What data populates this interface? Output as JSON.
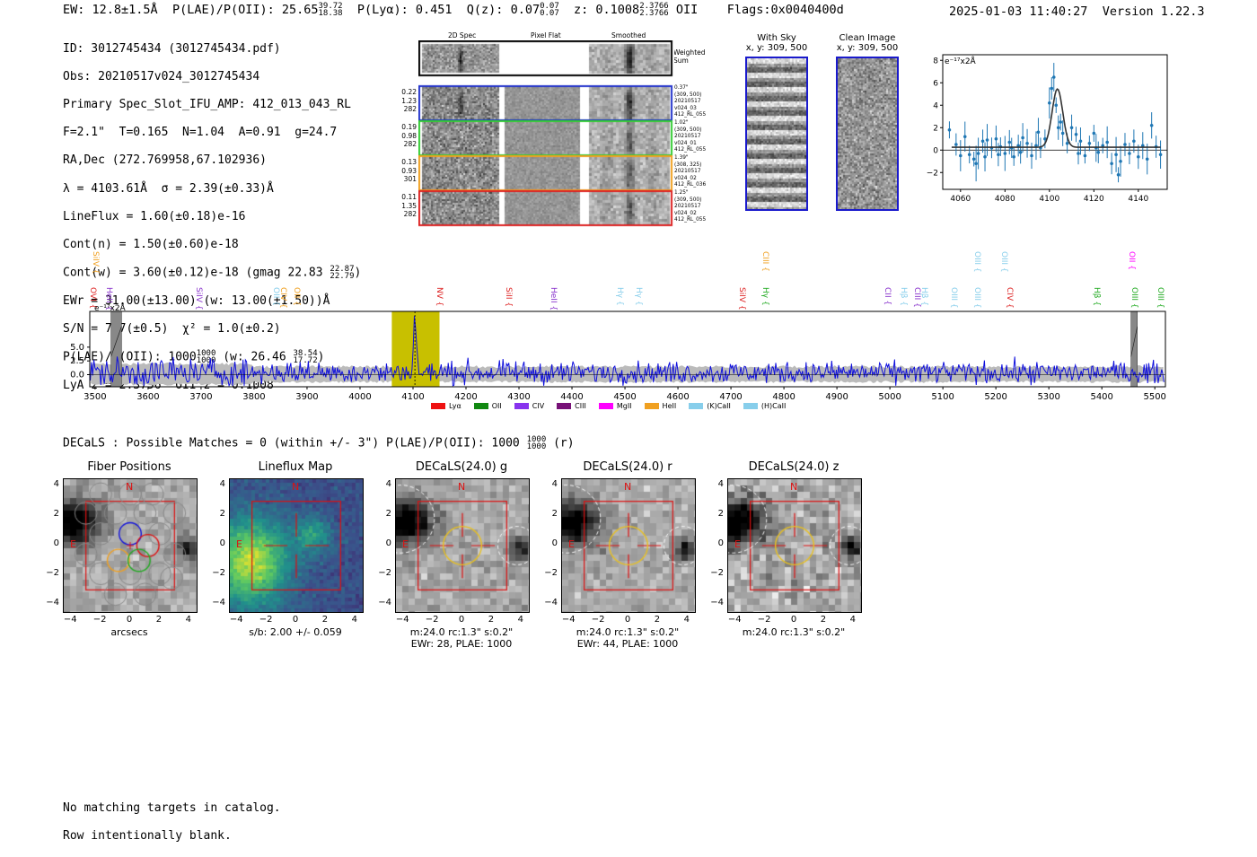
{
  "header": {
    "ew": "EW: 12.8±1.5Å",
    "plae_label": "P(LAE)/P(OII): 25.65",
    "plae_hi": "39.72",
    "plae_lo": "18.38",
    "plya": "P(Lyα): 0.451",
    "qz_label": "Q(z): 0.07",
    "qz_hi": "0.07",
    "qz_lo": "0.07",
    "z_label": "z: 0.1008",
    "z_hi": "2.3766",
    "z_lo": "2.3766",
    "z_line": "OII",
    "flags": "Flags:0x0040400d",
    "timestamp": "2025-01-03 11:40:27",
    "version": "Version 1.22.3"
  },
  "info": {
    "id": "ID: 3012745434 (3012745434.pdf)",
    "obs": "Obs: 20210517v024_3012745434",
    "primary": "Primary Spec_Slot_IFU_AMP: 412_013_043_RL",
    "fibers": "F=2.1\"  T=0.165  N=1.04  A=0.91  g=24.7",
    "radec": "RA,Dec (272.769958,67.102936)",
    "lambda": "λ = 4103.61Å  σ = 2.39(±0.33)Å",
    "lineflux": "LineFlux = 1.60(±0.18)e-16",
    "contn": "Cont(n) = 1.50(±0.60)e-18",
    "contw": "Cont(w) = 3.60(±0.12)e-18 (gmag 22.83",
    "contw_hi": "22.87",
    "contw_lo": "22.79",
    "contw_end": ")",
    "ewr": "EWr = 31.00(±13.00) (w: 13.00(±1.50))Å",
    "sn": "S/N = 7.7(±0.5)  χ² = 1.0(±0.2)",
    "plae": "P(LAE)/P(OII): 1000",
    "plae_hi": "1000",
    "plae_lo": "1000",
    "plae_w": "(w: 26.46",
    "plae_w_hi": "38.54",
    "plae_w_lo": "17.72",
    "plae_w_end": ")",
    "lya": "LyA z = 2.3756  OII z = 0.1008"
  },
  "cutouts": {
    "col_titles": [
      "2D Spec",
      "Pixel Flat",
      "Smoothed"
    ],
    "weighted_sum": "Weighted Sum",
    "rows": [
      {
        "left": [
          "0.22",
          "1.23",
          "282"
        ],
        "right": [
          "0.37\"",
          "(309, 500)",
          "20210517",
          "v024_03",
          "412_RL_055"
        ],
        "color": "#2233cc"
      },
      {
        "left": [
          "0.19",
          "0.98",
          "282"
        ],
        "right": [
          "1.02\"",
          "(309, 500)",
          "20210517",
          "v024_01",
          "412_RL_055"
        ],
        "color": "#33cc33"
      },
      {
        "left": [
          "0.13",
          "0.93",
          "301"
        ],
        "right": [
          "1.39\"",
          "(308, 325)",
          "20210517",
          "v024_02",
          "412_RL_036"
        ],
        "color": "#f0a020"
      },
      {
        "left": [
          "0.11",
          "1.35",
          "282"
        ],
        "right": [
          "1.25\"",
          "(309, 500)",
          "20210517",
          "v024_02",
          "412_RL_055"
        ],
        "color": "#dd2222"
      }
    ],
    "with_sky": "With Sky",
    "clean_image": "Clean Image",
    "xy": "x, y: 309, 500"
  },
  "zoom_plot": {
    "unit": "e⁻¹⁷x2Å",
    "xticks": [
      "4060",
      "4080",
      "4100",
      "4120",
      "4140"
    ],
    "yticks": [
      "8",
      "6",
      "4",
      "2",
      "0",
      "−2"
    ],
    "xlim": [
      4052,
      4153
    ],
    "ylim": [
      -3.5,
      8.5
    ],
    "data_x": [
      4055,
      4058,
      4060,
      4062,
      4064,
      4066,
      4067,
      4068,
      4070,
      4071,
      4072,
      4074,
      4076,
      4077,
      4078,
      4080,
      4082,
      4083,
      4084,
      4086,
      4087,
      4088,
      4090,
      4092,
      4094,
      4095,
      4096,
      4098,
      4100,
      4101,
      4102,
      4103,
      4104,
      4105,
      4106,
      4108,
      4110,
      4112,
      4113,
      4114,
      4116,
      4118,
      4120,
      4121,
      4122,
      4124,
      4126,
      4128,
      4130,
      4131,
      4132,
      4134,
      4136,
      4138,
      4140,
      4142,
      4144,
      4146,
      4148,
      4150
    ],
    "data_y": [
      1.8,
      0.5,
      -0.5,
      1.2,
      -0.4,
      -0.8,
      -1.2,
      -0.3,
      0.8,
      -0.6,
      0.9,
      0.2,
      1.0,
      -0.4,
      0.3,
      -0.3,
      0.7,
      0.2,
      -0.6,
      0.4,
      -0.2,
      1.1,
      0.6,
      -0.5,
      0.4,
      1.6,
      0.2,
      1.0,
      4.2,
      5.5,
      6.5,
      4.0,
      2.0,
      2.5,
      1.5,
      0.6,
      2.0,
      1.4,
      -0.3,
      0.8,
      -0.5,
      0.6,
      1.5,
      0.2,
      -0.2,
      0.4,
      0.7,
      -1.2,
      -0.4,
      -2.2,
      -1.0,
      0.5,
      -0.3,
      0.8,
      -0.6,
      0.4,
      -0.8,
      2.2,
      0.3,
      -0.4
    ],
    "fit_center": 4103.6,
    "fit_sigma": 2.39,
    "fit_amp": 5.2,
    "fit_base": 0.25
  },
  "spectrum": {
    "unit": "e⁻¹⁷x2Å",
    "xticks": [
      "3500",
      "3600",
      "3700",
      "3800",
      "3900",
      "4000",
      "4100",
      "4200",
      "4300",
      "4400",
      "4500",
      "4600",
      "4700",
      "4800",
      "4900",
      "5000",
      "5100",
      "5200",
      "5300",
      "5400",
      "5500"
    ],
    "yticks": [
      "5.0",
      "2.5",
      "0.0"
    ],
    "xlim": [
      3490,
      5520
    ],
    "ylim": [
      -2.2,
      11.5
    ],
    "highlight_range": [
      4060,
      4150
    ],
    "gray_bands": [
      [
        3530,
        3550
      ],
      [
        5455,
        5467
      ]
    ],
    "peak": 4103.6,
    "lines": [
      {
        "label": "OVI",
        "wave": 3495,
        "color": "#dd2222",
        "row": 2
      },
      {
        "label": "SiIV",
        "wave": 3500,
        "color": "#f0a020",
        "row": 0
      },
      {
        "label": "HeII",
        "wave": 3525,
        "color": "#8833cc",
        "row": 2
      },
      {
        "label": "SiIV",
        "wave": 3695,
        "color": "#8833cc",
        "row": 2
      },
      {
        "label": "CIV",
        "wave": 3855,
        "color": "#f0a020",
        "row": 2
      },
      {
        "label": "OII",
        "wave": 3880,
        "color": "#f0a020",
        "row": 2
      },
      {
        "label": "OII",
        "wave": 3840,
        "color": "#87ceeb",
        "row": 2
      },
      {
        "label": "NV",
        "wave": 4150,
        "color": "#dd2222",
        "row": 2
      },
      {
        "label": "SiII",
        "wave": 4280,
        "color": "#dd2222",
        "row": 2
      },
      {
        "label": "HeII",
        "wave": 4365,
        "color": "#8833cc",
        "row": 2
      },
      {
        "label": "Hγ",
        "wave": 4490,
        "color": "#87ceeb",
        "row": 2
      },
      {
        "label": "Hγ",
        "wave": 4525,
        "color": "#87ceeb",
        "row": 2
      },
      {
        "label": "SiIV",
        "wave": 4720,
        "color": "#dd2222",
        "row": 2
      },
      {
        "label": "CIII",
        "wave": 4765,
        "color": "#f0a020",
        "row": 0
      },
      {
        "label": "Hγ",
        "wave": 4765,
        "color": "#22aa22",
        "row": 2
      },
      {
        "label": "CII",
        "wave": 4995,
        "color": "#8833cc",
        "row": 2
      },
      {
        "label": "Hβ",
        "wave": 5025,
        "color": "#87ceeb",
        "row": 2
      },
      {
        "label": "CIII",
        "wave": 5050,
        "color": "#8833cc",
        "row": 2
      },
      {
        "label": "Hβ",
        "wave": 5065,
        "color": "#87ceeb",
        "row": 2
      },
      {
        "label": "OIII",
        "wave": 5120,
        "color": "#87ceeb",
        "row": 2
      },
      {
        "label": "OIII",
        "wave": 5165,
        "color": "#87ceeb",
        "row": 0
      },
      {
        "label": "OIII",
        "wave": 5165,
        "color": "#87ceeb",
        "row": 2
      },
      {
        "label": "OIII",
        "wave": 5215,
        "color": "#87ceeb",
        "row": 0
      },
      {
        "label": "CIV",
        "wave": 5225,
        "color": "#dd2222",
        "row": 2
      },
      {
        "label": "Hβ",
        "wave": 5390,
        "color": "#22aa22",
        "row": 2
      },
      {
        "label": "OII",
        "wave": 5455,
        "color": "#ff00ff",
        "row": 0
      },
      {
        "label": "OIII",
        "wave": 5460,
        "color": "#22aa22",
        "row": 2
      },
      {
        "label": "OIII",
        "wave": 5510,
        "color": "#22aa22",
        "row": 2
      }
    ],
    "legend": [
      {
        "label": "Lyα",
        "color": "#ee1111"
      },
      {
        "label": "OII",
        "color": "#118811"
      },
      {
        "label": "CIV",
        "color": "#8833ee"
      },
      {
        "label": "CIII",
        "color": "#771177"
      },
      {
        "label": "MgII",
        "color": "#ff00ff"
      },
      {
        "label": "HeII",
        "color": "#f0a020"
      },
      {
        "label": "(K)CaII",
        "color": "#87ceeb"
      },
      {
        "label": "(H)CaII",
        "color": "#87ceeb"
      }
    ]
  },
  "decals_line": {
    "text": "DECaLS : Possible Matches = 0 (within +/- 3\")  P(LAE)/P(OII): 1000",
    "hi": "1000",
    "lo": "1000",
    "end": "(r)"
  },
  "panels": [
    {
      "title": "Fiber Positions",
      "cap1": "arcsecs",
      "cap2": "",
      "kind": "fiber"
    },
    {
      "title": "Lineflux Map",
      "cap1": "s/b: 2.00 +/- 0.059",
      "cap2": "",
      "kind": "lineflux"
    },
    {
      "title": "DECaLS(24.0) g",
      "cap1": "m:24.0 rc:1.3\"  s:0.2\"",
      "cap2": "EWr: 28, PLAE: 1000",
      "kind": "g"
    },
    {
      "title": "DECaLS(24.0) r",
      "cap1": "m:24.0 rc:1.3\"  s:0.2\"",
      "cap2": "EWr: 44, PLAE: 1000",
      "kind": "r"
    },
    {
      "title": "DECaLS(24.0) z",
      "cap1": "m:24.0 rc:1.3\"  s:0.2\"",
      "cap2": "",
      "kind": "z"
    }
  ],
  "panel_ticks": {
    "x": [
      "−4",
      "−2",
      "0",
      "2",
      "4"
    ],
    "y": [
      "4",
      "2",
      "0",
      "−2",
      "−4"
    ],
    "n_label": "N",
    "e_label": "E"
  },
  "footer": {
    "line1": "No matching targets in catalog.",
    "line2": "Row intentionally blank."
  }
}
